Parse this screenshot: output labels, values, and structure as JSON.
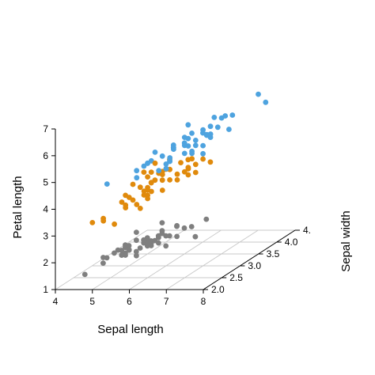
{
  "chart_data": {
    "type": "scatter",
    "projection": "3d",
    "xlabel": "Sepal length",
    "ylabel": "Sepal width",
    "zlabel": "Petal length",
    "xlim": [
      4,
      8
    ],
    "ylim": [
      2,
      4.5
    ],
    "zlim": [
      1,
      7
    ],
    "x_ticks": [
      "4",
      "5",
      "6",
      "7",
      "8"
    ],
    "y_ticks": [
      "2.0",
      "2.5",
      "3.0",
      "3.5",
      "4.0",
      "4."
    ],
    "z_ticks": [
      "1",
      "2",
      "3",
      "4",
      "5",
      "6",
      "7"
    ],
    "grid": "box floor and back walls",
    "series": [
      {
        "color": "#7f7f7f",
        "points": [
          [
            5.1,
            3.5,
            1.4
          ],
          [
            4.9,
            3.0,
            1.4
          ],
          [
            4.7,
            3.2,
            1.3
          ],
          [
            4.6,
            3.1,
            1.5
          ],
          [
            5.0,
            3.6,
            1.4
          ],
          [
            5.4,
            3.9,
            1.7
          ],
          [
            4.6,
            3.4,
            1.4
          ],
          [
            5.0,
            3.4,
            1.5
          ],
          [
            4.4,
            2.9,
            1.4
          ],
          [
            4.9,
            3.1,
            1.5
          ],
          [
            5.4,
            3.7,
            1.5
          ],
          [
            4.8,
            3.4,
            1.6
          ],
          [
            4.8,
            3.0,
            1.4
          ],
          [
            4.3,
            3.0,
            1.1
          ],
          [
            5.8,
            4.0,
            1.2
          ],
          [
            5.7,
            4.4,
            1.5
          ],
          [
            5.4,
            3.9,
            1.3
          ],
          [
            5.1,
            3.5,
            1.4
          ],
          [
            5.7,
            3.8,
            1.7
          ],
          [
            5.1,
            3.8,
            1.5
          ],
          [
            5.4,
            3.4,
            1.7
          ],
          [
            5.1,
            3.7,
            1.5
          ],
          [
            4.6,
            3.6,
            1.0
          ],
          [
            5.1,
            3.3,
            1.7
          ],
          [
            4.8,
            3.4,
            1.9
          ],
          [
            5.0,
            3.0,
            1.6
          ],
          [
            5.0,
            3.4,
            1.6
          ],
          [
            5.2,
            3.5,
            1.5
          ],
          [
            5.2,
            3.4,
            1.4
          ],
          [
            4.7,
            3.2,
            1.6
          ],
          [
            4.8,
            3.1,
            1.6
          ],
          [
            5.4,
            3.4,
            1.5
          ],
          [
            5.2,
            4.1,
            1.5
          ],
          [
            5.5,
            4.2,
            1.4
          ],
          [
            4.9,
            3.1,
            1.5
          ],
          [
            5.0,
            3.2,
            1.2
          ],
          [
            5.5,
            3.5,
            1.3
          ],
          [
            4.9,
            3.6,
            1.4
          ],
          [
            4.4,
            3.0,
            1.3
          ],
          [
            5.1,
            3.4,
            1.5
          ],
          [
            5.0,
            3.5,
            1.3
          ],
          [
            4.5,
            2.3,
            1.3
          ],
          [
            4.4,
            3.2,
            1.3
          ],
          [
            5.0,
            3.5,
            1.6
          ],
          [
            5.1,
            3.8,
            1.9
          ],
          [
            4.8,
            3.0,
            1.4
          ],
          [
            5.1,
            3.8,
            1.6
          ],
          [
            4.6,
            3.2,
            1.4
          ],
          [
            5.3,
            3.7,
            1.5
          ],
          [
            5.0,
            3.3,
            1.4
          ]
        ]
      },
      {
        "color": "#e08a0c",
        "points": [
          [
            7.0,
            3.2,
            4.7
          ],
          [
            6.4,
            3.2,
            4.5
          ],
          [
            6.9,
            3.1,
            4.9
          ],
          [
            5.5,
            2.3,
            4.0
          ],
          [
            6.5,
            2.8,
            4.6
          ],
          [
            5.7,
            2.8,
            4.5
          ],
          [
            6.3,
            3.3,
            4.7
          ],
          [
            4.9,
            2.4,
            3.3
          ],
          [
            6.6,
            2.9,
            4.6
          ],
          [
            5.2,
            2.7,
            3.9
          ],
          [
            5.0,
            2.0,
            3.5
          ],
          [
            5.9,
            3.0,
            4.2
          ],
          [
            6.0,
            2.2,
            4.0
          ],
          [
            6.1,
            2.9,
            4.7
          ],
          [
            5.6,
            2.9,
            3.6
          ],
          [
            6.7,
            3.1,
            4.4
          ],
          [
            5.6,
            3.0,
            4.5
          ],
          [
            5.8,
            2.7,
            4.1
          ],
          [
            6.2,
            2.2,
            4.5
          ],
          [
            5.6,
            2.5,
            3.9
          ],
          [
            5.9,
            3.2,
            4.8
          ],
          [
            6.1,
            2.8,
            4.0
          ],
          [
            6.3,
            2.5,
            4.9
          ],
          [
            6.1,
            2.8,
            4.7
          ],
          [
            6.4,
            2.9,
            4.3
          ],
          [
            6.6,
            3.0,
            4.4
          ],
          [
            6.8,
            2.8,
            4.8
          ],
          [
            6.7,
            3.0,
            5.0
          ],
          [
            6.0,
            2.9,
            4.5
          ],
          [
            5.7,
            2.6,
            3.5
          ],
          [
            5.5,
            2.4,
            3.8
          ],
          [
            5.5,
            2.4,
            3.7
          ],
          [
            5.8,
            2.7,
            3.9
          ],
          [
            6.0,
            2.7,
            5.1
          ],
          [
            5.4,
            3.0,
            4.5
          ],
          [
            6.0,
            3.4,
            4.5
          ],
          [
            6.7,
            3.1,
            4.7
          ],
          [
            6.3,
            2.3,
            4.4
          ],
          [
            5.6,
            3.0,
            4.1
          ],
          [
            5.5,
            2.5,
            4.0
          ],
          [
            5.5,
            2.6,
            4.4
          ],
          [
            6.1,
            3.0,
            4.6
          ],
          [
            5.8,
            2.6,
            4.0
          ],
          [
            5.0,
            2.3,
            3.3
          ],
          [
            5.6,
            2.7,
            4.2
          ],
          [
            5.7,
            3.0,
            4.2
          ],
          [
            5.7,
            2.9,
            4.2
          ],
          [
            6.2,
            2.9,
            4.3
          ],
          [
            5.1,
            2.5,
            3.0
          ],
          [
            5.7,
            2.8,
            4.1
          ]
        ]
      },
      {
        "color": "#4ea3df",
        "points": [
          [
            6.3,
            3.3,
            6.0
          ],
          [
            5.8,
            2.7,
            5.1
          ],
          [
            7.1,
            3.0,
            5.9
          ],
          [
            6.3,
            2.9,
            5.6
          ],
          [
            6.5,
            3.0,
            5.8
          ],
          [
            7.6,
            3.0,
            6.6
          ],
          [
            4.9,
            2.5,
            4.5
          ],
          [
            7.3,
            2.9,
            6.3
          ],
          [
            6.7,
            2.5,
            5.8
          ],
          [
            7.2,
            3.6,
            6.1
          ],
          [
            6.5,
            3.2,
            5.1
          ],
          [
            6.4,
            2.7,
            5.3
          ],
          [
            6.8,
            3.0,
            5.5
          ],
          [
            5.7,
            2.5,
            5.0
          ],
          [
            5.8,
            2.8,
            5.1
          ],
          [
            6.4,
            3.2,
            5.3
          ],
          [
            6.5,
            3.0,
            5.5
          ],
          [
            7.7,
            3.8,
            6.7
          ],
          [
            7.7,
            2.6,
            6.9
          ],
          [
            6.0,
            2.2,
            5.0
          ],
          [
            6.9,
            3.2,
            5.7
          ],
          [
            5.6,
            2.8,
            4.9
          ],
          [
            7.7,
            2.8,
            6.7
          ],
          [
            6.3,
            2.7,
            4.9
          ],
          [
            6.7,
            3.3,
            5.7
          ],
          [
            7.2,
            3.2,
            6.0
          ],
          [
            6.2,
            2.8,
            4.8
          ],
          [
            6.1,
            3.0,
            4.9
          ],
          [
            6.4,
            2.8,
            5.6
          ],
          [
            7.2,
            3.0,
            5.8
          ],
          [
            7.4,
            2.8,
            6.1
          ],
          [
            7.9,
            3.8,
            6.4
          ],
          [
            6.4,
            2.8,
            5.6
          ],
          [
            6.3,
            2.8,
            5.1
          ],
          [
            6.1,
            2.6,
            5.6
          ],
          [
            7.7,
            3.0,
            6.1
          ],
          [
            6.3,
            3.4,
            5.6
          ],
          [
            6.4,
            3.1,
            5.5
          ],
          [
            6.0,
            3.0,
            4.8
          ],
          [
            6.9,
            3.1,
            5.4
          ],
          [
            6.7,
            3.1,
            5.6
          ],
          [
            6.9,
            3.1,
            5.1
          ],
          [
            5.8,
            2.7,
            5.1
          ],
          [
            6.8,
            3.2,
            5.9
          ],
          [
            6.7,
            3.3,
            5.7
          ],
          [
            6.7,
            3.0,
            5.2
          ],
          [
            6.3,
            2.5,
            5.0
          ],
          [
            6.5,
            3.0,
            5.2
          ],
          [
            6.2,
            3.4,
            5.4
          ],
          [
            5.9,
            3.0,
            5.1
          ]
        ]
      }
    ]
  }
}
